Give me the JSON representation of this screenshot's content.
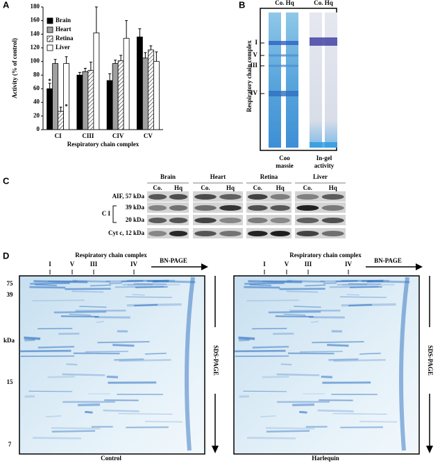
{
  "panel_labels": [
    "A",
    "B",
    "C",
    "D"
  ],
  "chart_data": {
    "type": "bar",
    "y_label": "Activity (% of control)",
    "x_label": "Respiratory chain complex",
    "categories": [
      "CI",
      "CIII",
      "CIV",
      "CV"
    ],
    "series": [
      {
        "name": "Brain",
        "color": "#000000",
        "values": [
          60,
          80,
          72,
          136
        ],
        "errors": [
          8,
          4,
          10,
          12
        ]
      },
      {
        "name": "Heart",
        "color": "#a0a0a0",
        "values": [
          97,
          85,
          97,
          105
        ],
        "errors": [
          6,
          5,
          5,
          8
        ]
      },
      {
        "name": "Retina",
        "color": "#ffffff",
        "hatch": true,
        "values": [
          27,
          87,
          101,
          117
        ],
        "errors": [
          6,
          12,
          8,
          6
        ]
      },
      {
        "name": "Liver",
        "color": "#ffffff",
        "values": [
          97,
          142,
          134,
          100
        ],
        "errors": [
          10,
          38,
          26,
          14
        ]
      }
    ],
    "annotations": [
      "*",
      "*"
    ],
    "ylim": [
      0,
      180
    ],
    "yticks": [
      0,
      20,
      40,
      60,
      80,
      100,
      120,
      140,
      160,
      180
    ],
    "legend": "upper-left"
  },
  "panel_b": {
    "lane_headers": [
      "Co. Hq",
      "Co. Hq"
    ],
    "y_label": "Respiratory chain complex",
    "bands": [
      "I",
      "V",
      "III",
      "IV"
    ],
    "captions": [
      [
        "Coo",
        "massie"
      ],
      [
        "In-gel",
        "activity"
      ]
    ]
  },
  "panel_c": {
    "tissues": [
      {
        "name": "Brain",
        "lanes": [
          "Co.",
          "Hq"
        ]
      },
      {
        "name": "Heart",
        "lanes": [
          "Co.",
          "Hq"
        ]
      },
      {
        "name": "Retina",
        "lanes": [
          "Co.",
          "Hq"
        ]
      },
      {
        "name": "Liver",
        "lanes": [
          "Co.",
          "Hq"
        ]
      }
    ],
    "rows": [
      "AIF, 57 kDa",
      "39 kDa",
      "20 kDa",
      "Cyt c, 12 kDa"
    ],
    "group_label": "C I"
  },
  "panel_d": {
    "top_label": "Respiratory chain complex",
    "bands": [
      "I",
      "V",
      "III",
      "IV"
    ],
    "bn_label": "BN-PAGE",
    "sds_label": "SDS-PAGE",
    "y_ticks": [
      75,
      39,
      15,
      7
    ],
    "y_unit": "kDa",
    "gels": [
      "Control",
      "Harlequin"
    ]
  }
}
